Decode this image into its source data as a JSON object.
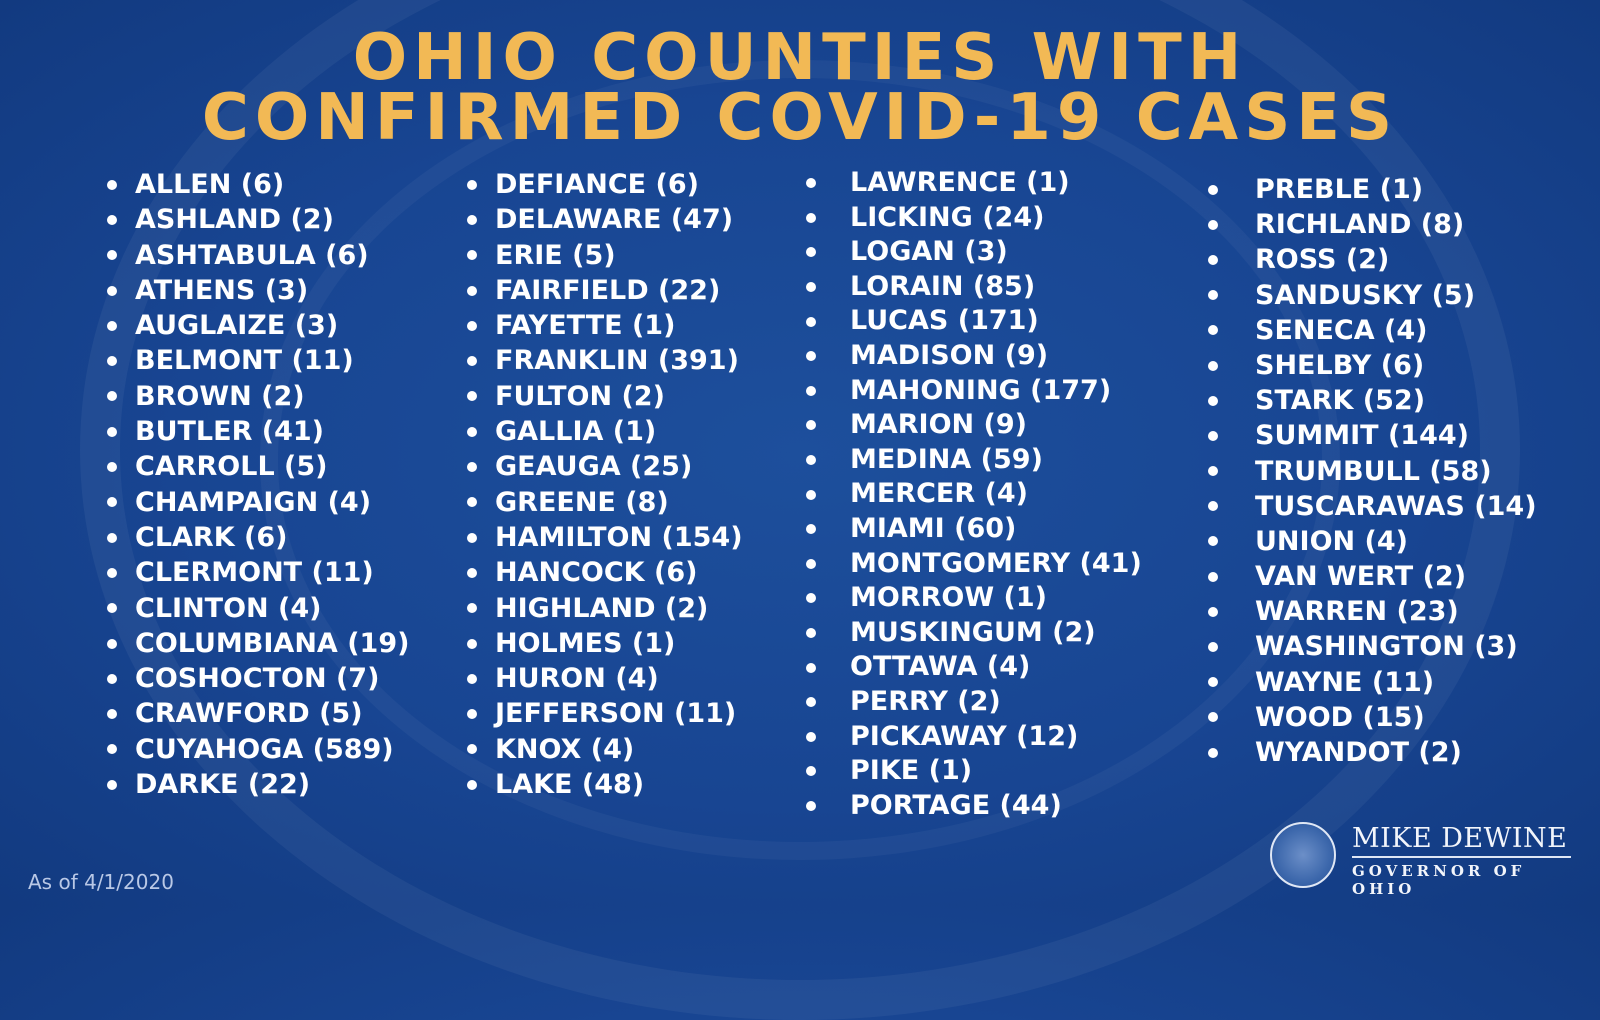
{
  "title": {
    "line1": "OHIO COUNTIES WITH",
    "line2": "CONFIRMED COVID-19 CASES"
  },
  "columns": [
    [
      "ALLEN (6)",
      "ASHLAND (2)",
      "ASHTABULA (6)",
      "ATHENS (3)",
      "AUGLAIZE (3)",
      "BELMONT (11)",
      "BROWN (2)",
      "BUTLER (41)",
      "CARROLL (5)",
      "CHAMPAIGN (4)",
      "CLARK (6)",
      "CLERMONT (11)",
      "CLINTON (4)",
      "COLUMBIANA (19)",
      "COSHOCTON (7)",
      "CRAWFORD (5)",
      "CUYAHOGA (589)",
      "DARKE (22)"
    ],
    [
      "DEFIANCE (6)",
      "DELAWARE (47)",
      "ERIE (5)",
      "FAIRFIELD (22)",
      "FAYETTE (1)",
      "FRANKLIN (391)",
      "FULTON (2)",
      "GALLIA (1)",
      "GEAUGA (25)",
      "GREENE (8)",
      "HAMILTON (154)",
      "HANCOCK (6)",
      "HIGHLAND (2)",
      "HOLMES (1)",
      "HURON (4)",
      "JEFFERSON (11)",
      "KNOX (4)",
      "LAKE (48)"
    ],
    [
      "LAWRENCE (1)",
      "LICKING (24)",
      "LOGAN (3)",
      "LORAIN (85)",
      "LUCAS (171)",
      "MADISON (9)",
      "MAHONING (177)",
      "MARION (9)",
      "MEDINA (59)",
      "MERCER (4)",
      "MIAMI (60)",
      "MONTGOMERY (41)",
      "MORROW (1)",
      "MUSKINGUM (2)",
      "OTTAWA (4)",
      "PERRY (2)",
      "PICKAWAY (12)",
      "PIKE (1)",
      "PORTAGE (44)"
    ],
    [
      "PREBLE (1)",
      "RICHLAND (8)",
      "ROSS (2)",
      "SANDUSKY (5)",
      "SENECA (4)",
      "SHELBY (6)",
      "STARK (52)",
      "SUMMIT (144)",
      "TRUMBULL (58)",
      "TUSCARAWAS (14)",
      "UNION (4)",
      "VAN WERT (2)",
      "WARREN (23)",
      "WASHINGTON (3)",
      "WAYNE (11)",
      "WOOD (15)",
      "WYANDOT (2)"
    ]
  ],
  "footer": {
    "as_of": "As of 4/1/2020"
  },
  "logo": {
    "name": "MIKE DEWINE",
    "subtitle": "GOVERNOR OF OHIO",
    "icon": "ohio-seal-icon"
  },
  "colors": {
    "background": "#184592",
    "title": "#f2b955",
    "text": "#ffffff"
  }
}
